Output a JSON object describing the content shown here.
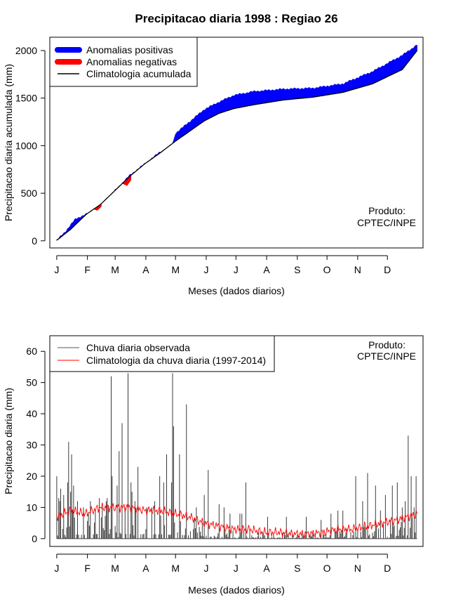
{
  "page_title": "Precipitacao diaria 1998 : Regiao 26",
  "chart_data": [
    {
      "type": "area",
      "title": "Precipitacao diaria 1998 : Regiao 26",
      "xlabel": "Meses (dados diarios)",
      "ylabel": "Precipitacao diaria acumulada (mm)",
      "months": [
        "J",
        "F",
        "M",
        "A",
        "M",
        "J",
        "J",
        "A",
        "S",
        "O",
        "N",
        "D"
      ],
      "month_start_day": [
        1,
        32,
        60,
        91,
        121,
        152,
        182,
        213,
        244,
        274,
        305,
        335
      ],
      "xlim": [
        -6,
        371
      ],
      "ylim": [
        -75,
        2140
      ],
      "yticks": [
        0,
        500,
        1000,
        1500,
        2000
      ],
      "legend_position": "top-left",
      "legend": [
        {
          "label": "Anomalias positivas",
          "color": "#0000ff",
          "style": "thick"
        },
        {
          "label": "Anomalias negativas",
          "color": "#ff0000",
          "style": "thick"
        },
        {
          "label": "Climatologia acumulada",
          "color": "#000000",
          "style": "line"
        }
      ],
      "annotation": [
        "Produto:",
        "CPTEC/INPE"
      ],
      "climatology_knots": [
        [
          1,
          5
        ],
        [
          15,
          120
        ],
        [
          31,
          280
        ],
        [
          45,
          380
        ],
        [
          59,
          520
        ],
        [
          75,
          680
        ],
        [
          90,
          810
        ],
        [
          105,
          920
        ],
        [
          120,
          1040
        ],
        [
          135,
          1150
        ],
        [
          150,
          1260
        ],
        [
          165,
          1340
        ],
        [
          180,
          1390
        ],
        [
          200,
          1430
        ],
        [
          230,
          1480
        ],
        [
          260,
          1510
        ],
        [
          290,
          1560
        ],
        [
          320,
          1650
        ],
        [
          350,
          1800
        ],
        [
          365,
          2000
        ]
      ],
      "observed_knots": [
        [
          1,
          5
        ],
        [
          10,
          100
        ],
        [
          20,
          230
        ],
        [
          31,
          280
        ],
        [
          40,
          330
        ],
        [
          45,
          360
        ],
        [
          59,
          520
        ],
        [
          75,
          690
        ],
        [
          90,
          810
        ],
        [
          105,
          930
        ],
        [
          118,
          1010
        ],
        [
          121,
          1130
        ],
        [
          135,
          1250
        ],
        [
          150,
          1380
        ],
        [
          165,
          1460
        ],
        [
          180,
          1530
        ],
        [
          200,
          1570
        ],
        [
          230,
          1595
        ],
        [
          260,
          1605
        ],
        [
          290,
          1650
        ],
        [
          320,
          1780
        ],
        [
          350,
          1950
        ],
        [
          365,
          2060
        ]
      ],
      "negative_anomaly_knots": [
        [
          38,
          335
        ],
        [
          42,
          320
        ],
        [
          46,
          360
        ],
        [
          68,
          600
        ],
        [
          72,
          580
        ],
        [
          76,
          640
        ]
      ]
    },
    {
      "type": "bar",
      "title": "",
      "xlabel": "Meses (dados diarios)",
      "ylabel": "Precipitacao diaria (mm)",
      "months": [
        "J",
        "F",
        "M",
        "A",
        "M",
        "J",
        "J",
        "A",
        "S",
        "O",
        "N",
        "D"
      ],
      "month_start_day": [
        1,
        32,
        60,
        91,
        121,
        152,
        182,
        213,
        244,
        274,
        305,
        335
      ],
      "xlim": [
        -6,
        371
      ],
      "ylim": [
        -2.5,
        65
      ],
      "yticks": [
        0,
        10,
        20,
        30,
        40,
        50,
        60
      ],
      "legend_position": "top-left",
      "legend": [
        {
          "label": "Chuva diaria observada",
          "color": "#555555",
          "style": "line"
        },
        {
          "label": "Climatologia da chuva diaria (1997-2014)",
          "color": "#ff0000",
          "style": "line"
        }
      ],
      "annotation": [
        "Produto:",
        "CPTEC/INPE"
      ],
      "observed_daily_peaks": [
        [
          1,
          20
        ],
        [
          3,
          13
        ],
        [
          4,
          12
        ],
        [
          5,
          16
        ],
        [
          8,
          14
        ],
        [
          12,
          18
        ],
        [
          13,
          31
        ],
        [
          15,
          15
        ],
        [
          16,
          27
        ],
        [
          18,
          17
        ],
        [
          22,
          12
        ],
        [
          28,
          10
        ],
        [
          35,
          12
        ],
        [
          44,
          13
        ],
        [
          47,
          10
        ],
        [
          51,
          12
        ],
        [
          52,
          13
        ],
        [
          56,
          52
        ],
        [
          57,
          20
        ],
        [
          62,
          17
        ],
        [
          64,
          28
        ],
        [
          67,
          37
        ],
        [
          70,
          10
        ],
        [
          73,
          53
        ],
        [
          76,
          18
        ],
        [
          77,
          15
        ],
        [
          80,
          12
        ],
        [
          83,
          23
        ],
        [
          92,
          10
        ],
        [
          97,
          10
        ],
        [
          100,
          12
        ],
        [
          105,
          20
        ],
        [
          109,
          18
        ],
        [
          112,
          27
        ],
        [
          117,
          18
        ],
        [
          118,
          53
        ],
        [
          119,
          36
        ],
        [
          125,
          27
        ],
        [
          132,
          43
        ],
        [
          142,
          10
        ],
        [
          150,
          14
        ],
        [
          154,
          22
        ],
        [
          165,
          11
        ],
        [
          170,
          10
        ],
        [
          176,
          8
        ],
        [
          186,
          8
        ],
        [
          188,
          8
        ],
        [
          192,
          18
        ],
        [
          214,
          7
        ],
        [
          233,
          7
        ],
        [
          253,
          7
        ],
        [
          268,
          6
        ],
        [
          278,
          8
        ],
        [
          285,
          9
        ],
        [
          290,
          9
        ],
        [
          303,
          20
        ],
        [
          310,
          12
        ],
        [
          315,
          21
        ],
        [
          323,
          17
        ],
        [
          328,
          9
        ],
        [
          333,
          14
        ],
        [
          340,
          17
        ],
        [
          345,
          18
        ],
        [
          350,
          10
        ],
        [
          353,
          12
        ],
        [
          356,
          33
        ],
        [
          359,
          20
        ],
        [
          362,
          10
        ],
        [
          364,
          20
        ]
      ],
      "climatology_knots": [
        [
          1,
          7
        ],
        [
          15,
          9
        ],
        [
          30,
          8
        ],
        [
          45,
          10
        ],
        [
          60,
          10
        ],
        [
          75,
          10
        ],
        [
          90,
          9
        ],
        [
          105,
          9
        ],
        [
          120,
          8
        ],
        [
          135,
          7
        ],
        [
          150,
          5
        ],
        [
          165,
          4
        ],
        [
          180,
          3
        ],
        [
          195,
          3
        ],
        [
          210,
          2
        ],
        [
          225,
          2
        ],
        [
          240,
          1.5
        ],
        [
          255,
          1.5
        ],
        [
          270,
          2
        ],
        [
          285,
          3
        ],
        [
          300,
          3
        ],
        [
          315,
          4
        ],
        [
          330,
          5
        ],
        [
          345,
          6
        ],
        [
          365,
          8
        ]
      ]
    }
  ]
}
